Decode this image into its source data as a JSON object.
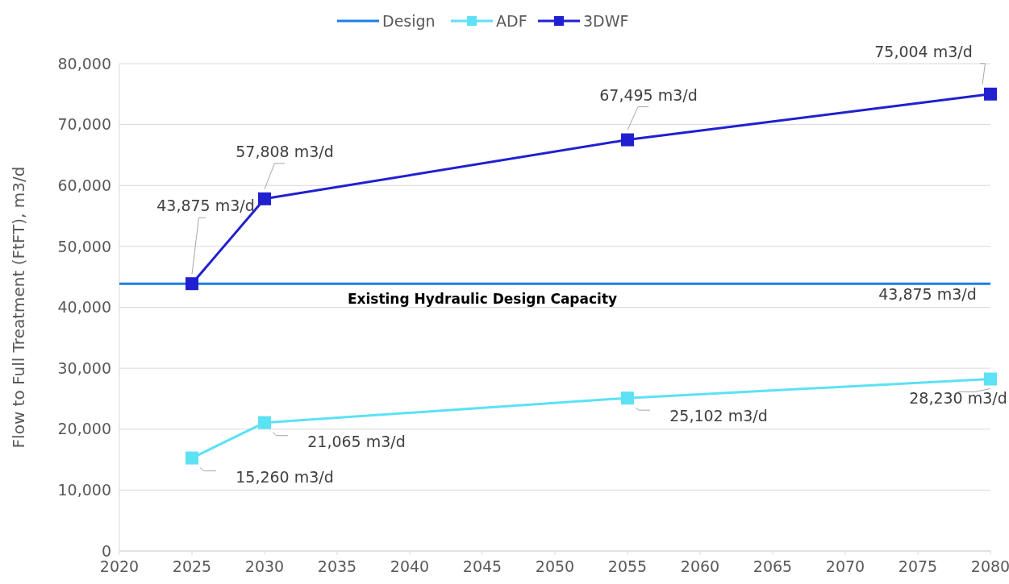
{
  "chart_data": {
    "type": "line",
    "ylabel": "Flow to Full Treatment (FtFT), m3/d",
    "xlim": [
      2020,
      2080
    ],
    "xticks": [
      2020,
      2025,
      2030,
      2035,
      2040,
      2045,
      2050,
      2055,
      2060,
      2065,
      2070,
      2075,
      2080
    ],
    "ylim": [
      0,
      80000
    ],
    "yticks": [
      {
        "value": 0,
        "label": "0"
      },
      {
        "value": 10000,
        "label": "10,000"
      },
      {
        "value": 20000,
        "label": "20,000"
      },
      {
        "value": 30000,
        "label": "30,000"
      },
      {
        "value": 40000,
        "label": "40,000"
      },
      {
        "value": 50000,
        "label": "50,000"
      },
      {
        "value": 60000,
        "label": "60,000"
      },
      {
        "value": 70000,
        "label": "70,000"
      },
      {
        "value": 80000,
        "label": "80,000"
      }
    ],
    "grid": "y",
    "legend": "top",
    "series": [
      {
        "name": "Design",
        "color": "#1a7fe8",
        "marker": "none",
        "x": [
          2020,
          2080
        ],
        "values": [
          43875,
          43875
        ],
        "value_labels": [
          null,
          "43,875 m3/d"
        ]
      },
      {
        "name": "ADF",
        "color": "#5ce1f5",
        "marker": "square",
        "x": [
          2025,
          2030,
          2055,
          2080
        ],
        "values": [
          15260,
          21065,
          25102,
          28230
        ],
        "value_labels": [
          "15,260 m3/d",
          "21,065 m3/d",
          "25,102 m3/d",
          "28,230 m3/d"
        ]
      },
      {
        "name": "3DWF",
        "color": "#2020d0",
        "marker": "square",
        "x": [
          2025,
          2030,
          2055,
          2080
        ],
        "values": [
          43875,
          57808,
          67495,
          75004
        ],
        "value_labels": [
          "43,875 m3/d",
          "57,808 m3/d",
          "67,495 m3/d",
          "75,004 m3/d"
        ]
      }
    ],
    "annotations": [
      {
        "text": "Existing Hydraulic Design Capacity",
        "x": 2045,
        "y": 43875
      }
    ]
  }
}
